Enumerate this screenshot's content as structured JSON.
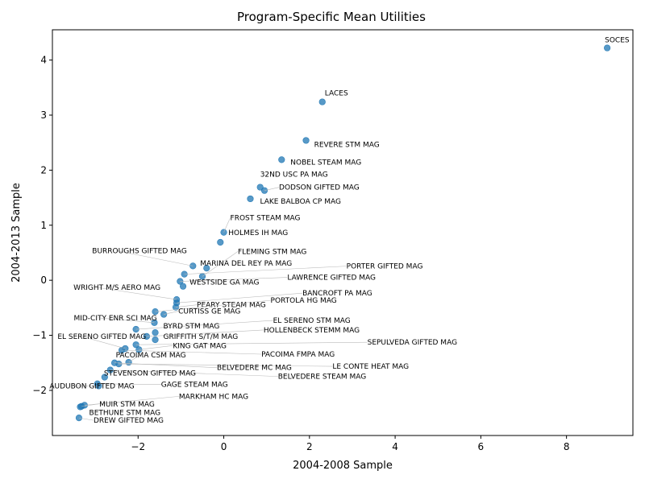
{
  "chart_data": {
    "type": "scatter",
    "title": "Program-Specific Mean Utilities",
    "xlabel": "2004-2008 Sample",
    "ylabel": "2004-2013 Sample",
    "xlim": [
      -4.0,
      9.55
    ],
    "ylim": [
      -2.82,
      4.55
    ],
    "xticks": [
      -2,
      0,
      2,
      4,
      6,
      8
    ],
    "yticks": [
      -2,
      -1,
      0,
      1,
      2,
      3,
      4
    ],
    "grid": false,
    "points": [
      {
        "x": 8.95,
        "y": 4.22,
        "label": "SOCES"
      },
      {
        "x": 2.3,
        "y": 3.24,
        "label": "LACES"
      },
      {
        "x": 1.92,
        "y": 2.54,
        "label": "REVERE STM MAG"
      },
      {
        "x": 1.35,
        "y": 2.19,
        "label": "NOBEL STEAM MAG"
      },
      {
        "x": 0.85,
        "y": 1.69,
        "label": "32ND USC PA MAG"
      },
      {
        "x": 0.95,
        "y": 1.63,
        "label": "DODSON GIFTED MAG"
      },
      {
        "x": 0.62,
        "y": 1.48,
        "label": "LAKE BALBOA CP MAG"
      },
      {
        "x": 0.0,
        "y": 0.87,
        "label": "FROST STEAM MAG"
      },
      {
        "x": -0.08,
        "y": 0.69,
        "label": "HOLMES IH MAG"
      },
      {
        "x": -0.5,
        "y": 0.07,
        "label": "FLEMING STM MAG"
      },
      {
        "x": -0.72,
        "y": 0.26,
        "label": "BURROUGHS GIFTED MAG"
      },
      {
        "x": -0.4,
        "y": 0.22,
        "label": "MARINA DEL REY PA MAG"
      },
      {
        "x": -0.92,
        "y": 0.11,
        "label": "PORTER GIFTED MAG"
      },
      {
        "x": -1.02,
        "y": -0.02,
        "label": "LAWRENCE GIFTED MAG"
      },
      {
        "x": -0.95,
        "y": -0.11,
        "label": "WESTSIDE GA MAG"
      },
      {
        "x": -1.1,
        "y": -0.35,
        "label": "WRIGHT M/S AERO MAG"
      },
      {
        "x": -1.1,
        "y": -0.41,
        "label": "BANCROFT PA MAG"
      },
      {
        "x": -1.12,
        "y": -0.49,
        "label": "PEARY STEAM MAG"
      },
      {
        "x": -1.6,
        "y": -0.57,
        "label": "PORTOLA HG MAG"
      },
      {
        "x": -1.4,
        "y": -0.62,
        "label": "CURTISS GE MAG"
      },
      {
        "x": -1.62,
        "y": -0.77,
        "label": "MID-CITY ENR SCI MAG"
      },
      {
        "x": -2.05,
        "y": -0.89,
        "label": "EL SERENO STM MAG"
      },
      {
        "x": -1.6,
        "y": -0.95,
        "label": "BYRD STM MAG"
      },
      {
        "x": -1.8,
        "y": -1.02,
        "label": "HOLLENBECK STEMM MAG"
      },
      {
        "x": -1.6,
        "y": -1.08,
        "label": "GRIFFITH S/T/M MAG"
      },
      {
        "x": -2.05,
        "y": -1.17,
        "label": "SEPULVEDA GIFTED MAG"
      },
      {
        "x": -1.98,
        "y": -1.26,
        "label": "KING GAT MAG"
      },
      {
        "x": -2.3,
        "y": -1.24,
        "label": "EL SERENO GIFTED MAG"
      },
      {
        "x": -2.38,
        "y": -1.27,
        "label": "PACOIMA FMPA MAG"
      },
      {
        "x": -2.22,
        "y": -1.49,
        "label": "PACOIMA CSM MAG"
      },
      {
        "x": -2.45,
        "y": -1.52,
        "label": "LE CONTE HEAT MAG"
      },
      {
        "x": -2.55,
        "y": -1.5,
        "label": "BELVEDERE MC MAG"
      },
      {
        "x": -2.65,
        "y": -1.63,
        "label": "BELVEDERE STEAM MAG"
      },
      {
        "x": -2.78,
        "y": -1.76,
        "label": "STEVENSON GIFTED MAG"
      },
      {
        "x": -2.95,
        "y": -1.88,
        "label": "GAGE STEAM MAG"
      },
      {
        "x": -2.92,
        "y": -1.92,
        "label": "AUDUBON GIFTED MAG"
      },
      {
        "x": -3.25,
        "y": -2.27,
        "label": "MARKHAM HC MAG"
      },
      {
        "x": -3.32,
        "y": -2.29,
        "label": "MUIR STM MAG"
      },
      {
        "x": -3.35,
        "y": -2.3,
        "label": "BETHUNE STM MAG"
      },
      {
        "x": -3.38,
        "y": -2.5,
        "label": "DREW GIFTED MAG"
      }
    ]
  }
}
